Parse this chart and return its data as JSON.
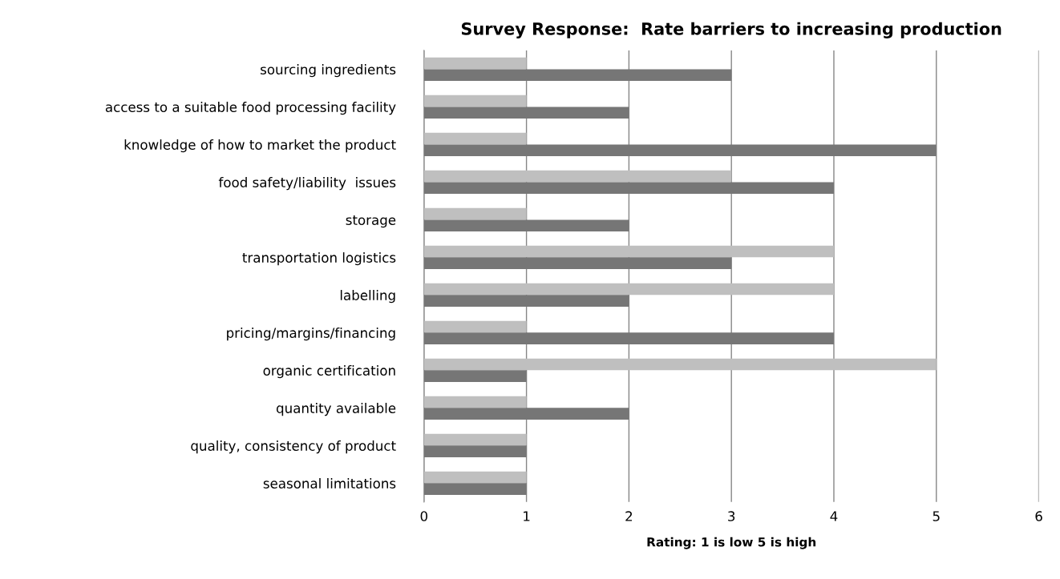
{
  "chart_data": {
    "type": "bar",
    "orientation": "horizontal",
    "title": "Survey Response:  Rate barriers to increasing production",
    "xlabel": "Rating: 1 is low 5 is high",
    "categories": [
      "sourcing ingredients",
      "access to a suitable food processing facility",
      "knowledge of how to market the product",
      "food safety/liability  issues",
      "storage",
      "transportation logistics",
      "labelling",
      "pricing/margins/financing",
      "organic certification",
      "quantity available",
      "quality, consistency of product",
      "seasonal limitations"
    ],
    "series": [
      {
        "color": "#bfbfbf",
        "values": [
          1,
          1,
          1,
          3,
          1,
          4,
          4,
          1,
          5,
          1,
          1,
          1
        ]
      },
      {
        "color": "#767676",
        "values": [
          3,
          2,
          5,
          4,
          2,
          3,
          2,
          4,
          1,
          2,
          1,
          1
        ]
      }
    ],
    "xlim": [
      0,
      6
    ],
    "xticks": [
      0,
      1,
      2,
      3,
      4,
      5,
      6
    ],
    "grid": "x",
    "legend": false
  }
}
